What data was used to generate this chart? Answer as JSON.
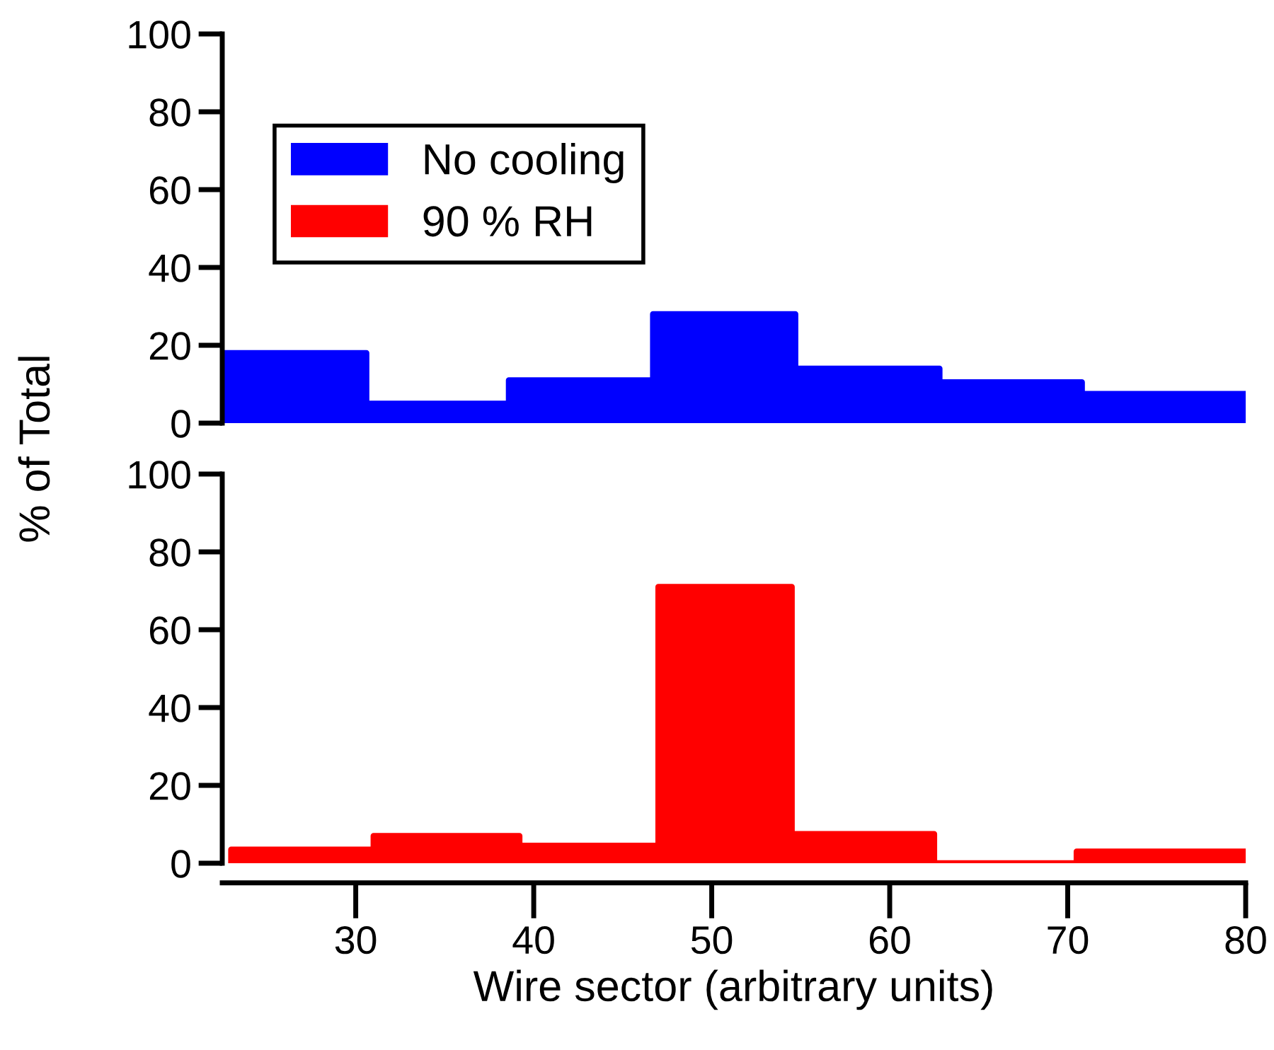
{
  "chart_data": [
    {
      "type": "histogram",
      "ylabel": "% of Total",
      "legend": "top left",
      "tick_labels": "y",
      "bins": [
        22.5,
        30.6,
        38.6,
        46.7,
        54.7,
        62.8,
        70.8,
        80
      ],
      "series": [
        {
          "name": "No cooling",
          "color": "#0000ff",
          "values": [
            18,
            5,
            11,
            28,
            14,
            10.5,
            7.5
          ]
        }
      ],
      "xlim": [
        22.5,
        80
      ],
      "ylim": [
        0,
        100
      ],
      "yticks": [
        0,
        20,
        40,
        60,
        80,
        100
      ]
    },
    {
      "type": "histogram",
      "xlabel": "Wire sector (arbitrary units)",
      "bins": [
        23,
        31,
        39.2,
        47,
        54.5,
        62.5,
        70.5,
        80
      ],
      "series": [
        {
          "name": "90 % RH",
          "color": "#ff0000",
          "values": [
            3.5,
            7,
            4.5,
            71,
            7.5,
            0,
            3
          ]
        }
      ],
      "xlim": [
        22.5,
        80
      ],
      "xticks": [
        30,
        40,
        50,
        60,
        70,
        80
      ],
      "ylim": [
        0,
        100
      ],
      "yticks": [
        0,
        20,
        40,
        60,
        80,
        100
      ]
    }
  ]
}
